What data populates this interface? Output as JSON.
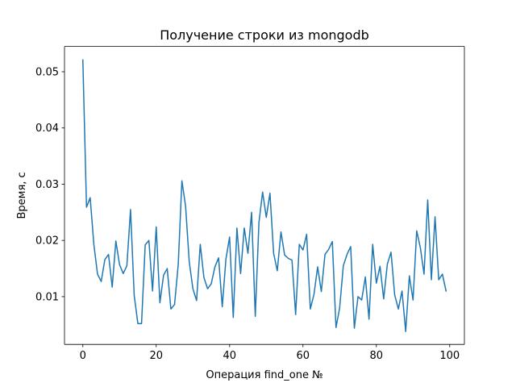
{
  "chart_data": {
    "type": "line",
    "title": "Получение строки из mongodb",
    "xlabel": "Операция find_one №",
    "ylabel": "Время, с",
    "xlim": [
      -5,
      104
    ],
    "ylim": [
      0.0015,
      0.0545
    ],
    "xticks": [
      0,
      20,
      40,
      60,
      80,
      100
    ],
    "xtick_labels": [
      "0",
      "20",
      "40",
      "60",
      "80",
      "100"
    ],
    "yticks": [
      0.01,
      0.02,
      0.03,
      0.04,
      0.05
    ],
    "ytick_labels": [
      "0.01",
      "0.02",
      "0.03",
      "0.04",
      "0.05"
    ],
    "grid": false,
    "series": [
      {
        "color": "#1f77b4",
        "x": [
          0,
          1,
          2,
          3,
          4,
          5,
          6,
          7,
          8,
          9,
          10,
          11,
          12,
          13,
          14,
          15,
          16,
          17,
          18,
          19,
          20,
          21,
          22,
          23,
          24,
          25,
          26,
          27,
          28,
          29,
          30,
          31,
          32,
          33,
          34,
          35,
          36,
          37,
          38,
          39,
          40,
          41,
          42,
          43,
          44,
          45,
          46,
          47,
          48,
          49,
          50,
          51,
          52,
          53,
          54,
          55,
          56,
          57,
          58,
          59,
          60,
          61,
          62,
          63,
          64,
          65,
          66,
          67,
          68,
          69,
          70,
          71,
          72,
          73,
          74,
          75,
          76,
          77,
          78,
          79,
          80,
          81,
          82,
          83,
          84,
          85,
          86,
          87,
          88,
          89,
          90,
          91,
          92,
          93,
          94,
          95,
          96,
          97,
          98,
          99
        ],
        "y": [
          0.0521,
          0.0259,
          0.0276,
          0.0193,
          0.014,
          0.0127,
          0.0166,
          0.0175,
          0.0117,
          0.0199,
          0.0157,
          0.0141,
          0.0155,
          0.0255,
          0.0102,
          0.0052,
          0.0052,
          0.0192,
          0.02,
          0.011,
          0.0224,
          0.0089,
          0.0138,
          0.015,
          0.0078,
          0.0086,
          0.0157,
          0.0306,
          0.0261,
          0.0162,
          0.0114,
          0.0093,
          0.0193,
          0.0134,
          0.0114,
          0.0123,
          0.0153,
          0.0169,
          0.0082,
          0.0167,
          0.0206,
          0.0063,
          0.0222,
          0.0141,
          0.0222,
          0.0177,
          0.025,
          0.0065,
          0.0232,
          0.0286,
          0.0241,
          0.0284,
          0.0177,
          0.0146,
          0.0215,
          0.0174,
          0.0168,
          0.0165,
          0.0068,
          0.0193,
          0.0183,
          0.0211,
          0.0078,
          0.0104,
          0.0153,
          0.0109,
          0.0175,
          0.0184,
          0.0198,
          0.0045,
          0.008,
          0.0155,
          0.0175,
          0.0189,
          0.0044,
          0.01,
          0.0094,
          0.0135,
          0.006,
          0.0193,
          0.0124,
          0.0154,
          0.0096,
          0.0158,
          0.0179,
          0.0103,
          0.0078,
          0.011,
          0.0038,
          0.0137,
          0.0094,
          0.0217,
          0.0187,
          0.014,
          0.0272,
          0.013,
          0.0242,
          0.013,
          0.014,
          0.011
        ]
      }
    ]
  }
}
